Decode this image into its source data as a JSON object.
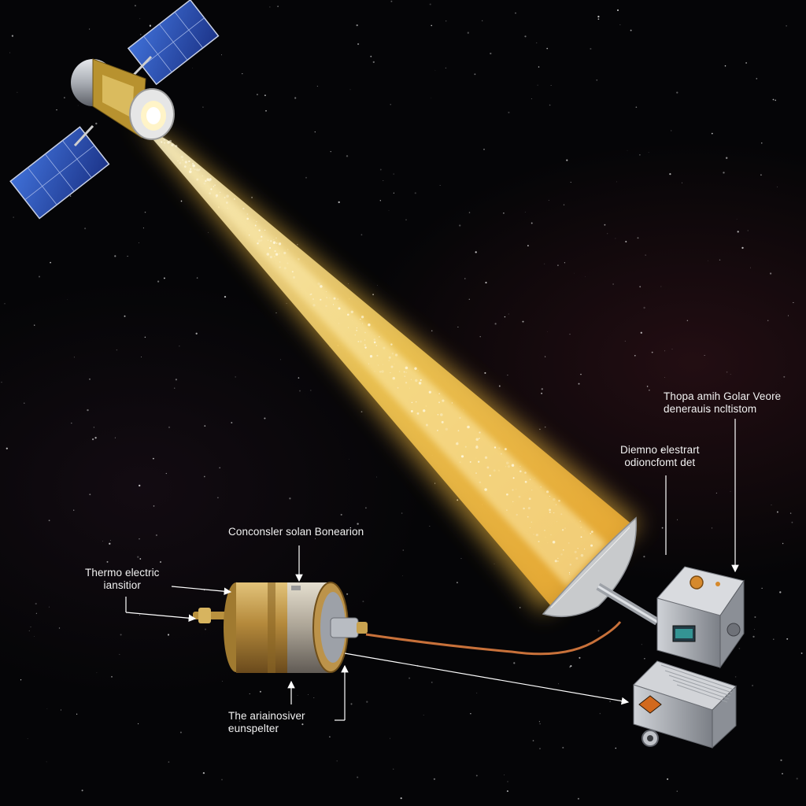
{
  "labels": {
    "top_right": {
      "line1": "Thopa amih Golar  Veore",
      "line2": "denerauis ncltistom"
    },
    "mid_right": {
      "line1": "Diemno elestrart",
      "line2": "odioncfomt det"
    },
    "concentrator": {
      "line1": "Conconsler solan Bonearion"
    },
    "thermoelectric": {
      "line1": "Thermo electric",
      "line2": "iansitior"
    },
    "bottom": {
      "line1": "The ariainosiver",
      "line2": "eunspelter"
    }
  },
  "colors": {
    "background": "#050507",
    "beam": "#ffd35a",
    "beam_core": "#fff3c0",
    "solar_panel": "#2a4fb3",
    "gold_foil": "#c9a24a",
    "copper_cable": "#c8713a",
    "label_text": "#f2f2f2"
  }
}
